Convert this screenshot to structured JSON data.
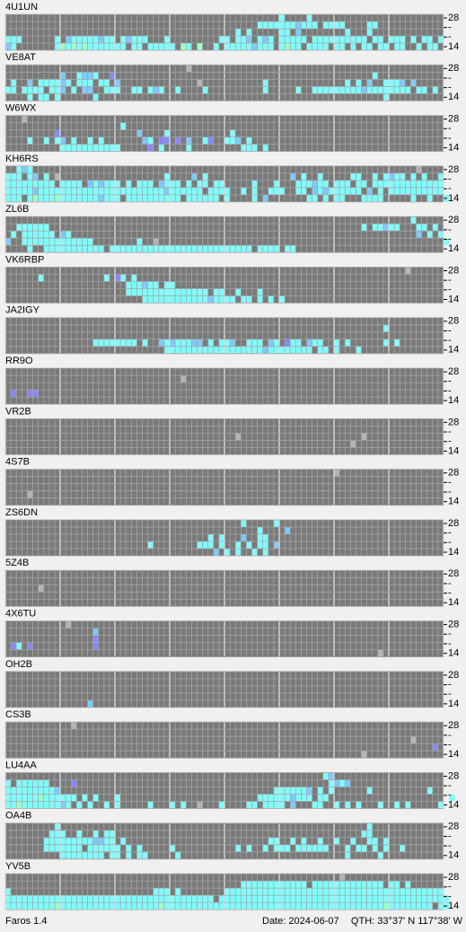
{
  "band_labels": [
    "28",
    "-",
    "-",
    "14"
  ],
  "stations": [
    {
      "name": "4U1UN",
      "rows": [
        "..................................................c....c",
        "..............................................cccccccbccc.cccc....cc",
        "..........................................c.c.....cc.b........c...c.....",
        "ccc......c.bcccccbcc.cbccc...c.........cc.ccb.cbc.ccccc.cccccccccc.cc.ccc.c.cc.c",
        "bc.......cgcgcgccccccc.cc.ccccc.gc.g..c.cccccbccc.cgcc.cccc.cc.c.cc.cc.cc..c.cc."
      ]
    },
    {
      "name": "VE8AT",
      "rows": [
        ".................................n",
        "..........b..cbbc..p...............................................c..........",
        ".c..b.ccccbc.ccc.cc.b..............n...........c..............c.c.b..cccb.b.....",
        "cc.cccc.ccb.c.bb..ccc..cc.cbc..c....c..........c.....c..cccccccccbcccccccc.cc.c..",
        "....c.cc.c......c....................................................c.........."
      ]
    },
    {
      "name": "W6WX",
      "rows": [
        "...n",
        ".....................c",
        ".........p..............b....c...........c",
        "....c..c.cb.c..c.c.......bc.pp.p.b..cp..ccb.c",
        "..........ccccccccccc.....p.c....c.........ccc.c"
      ]
    },
    {
      "name": "KH6RS",
      "rows": [
        "..cbc......................................................................n",
        "ccc.cb.c.n...................c....b.c...............b.c..c.....cc..c.cbcc.c.c..c",
        "ccccccccc.cccc.bcbccc.c.ccc.bccc.c.cc.cc.....c...c...cccbcc.ccc.cc.ccccccccccccc",
        "cccccbcccccccccccccccccccccccbcccccc.cccc..c.c..ccc..cc.bcbcccccc.b.c.cccccccccc.",
        "ccc.cgcccgcccccccbccc.cccccccccc.cccccc.c....c.b.......cc.c.cc...cccc.....c..c..c"
      ]
    },
    {
      "name": "ZL6B",
      "rows": [
        "..........................................................................c",
        "..cccccc.........................................................c.ccbcc...cc.c",
        ".c.cccccc.bc...............................................................b.c.c",
        "b..ccccccccccccc........c..n....................................................c",
        "....c..ccccccccccc.cccccccccccccccccccccccccc.cccc.cc"
      ]
    },
    {
      "name": "VK6RBP",
      "rows": [
        ".........................................................................n",
        "......c...........c.pc.c",
        "......................cccbcc.cc",
        "......................ccccccccccccccc.cc..c...c",
        ".........................ccccccccccccbcccc.cc.c.c.c"
      ]
    },
    {
      "name": "JA2IGY",
      "rows": [
        "",
        ".....................................................................c",
        "",
        "................cccccccc.c..bcbcccbb.c.ccb..ccc.bc.pcc.bcc..c.c......c.c",
        ".............................ccccccccccccccccccbcccccccc.cc.c...c"
      ]
    },
    {
      "name": "RR9O",
      "rows": [
        "",
        "................................n",
        "",
        ".p..pp",
        ""
      ]
    },
    {
      "name": "VR2B",
      "rows": [
        "",
        "",
        "..........................................n......................n",
        "...............................................................n",
        ""
      ]
    },
    {
      "name": "4S7B",
      "rows": [
        "............................................................n",
        "",
        "",
        "....n",
        ""
      ]
    },
    {
      "name": "ZS6DN",
      "rows": [
        "...........................................c.....c",
        "..............................................c....b",
        ".....................................c.c...b..cc",
        "..........................c........ccc.c..c.c.cc.b",
        "......................................b.c.c..c.c"
      ]
    },
    {
      "name": "5Z4B",
      "rows": [
        "",
        "",
        "......n",
        "",
        ""
      ]
    },
    {
      "name": "4X6TU",
      "rows": [
        "...........n",
        "................b",
        "................p",
        ".pc.p...........p",
        "....................................................................n"
      ]
    },
    {
      "name": "OH2B",
      "rows": [
        "",
        "",
        "",
        "",
        "...............b"
      ]
    },
    {
      "name": "CS3B",
      "rows": [
        "............n",
        "",
        "..........................................................................n",
        "..............................................................................p",
        ".................................................................n"
      ]
    },
    {
      "name": "LU4AA",
      "rows": [
        "..........................................................cb",
        "c.cccccc....p..............................................cbcb",
        "cccccccccb.......................................ccccccb.c.c......c..........c",
        "ccccccgcccccc.c.c...c.........................ccccccbccc.cc......................c",
        "ccgcccccccbc.c.c..c.c.....c...c.c..n...c....cc.cccc.b...cc..c.c.c...c..c.c.....c"
      ]
    },
    {
      "name": "OA4B",
      "rows": [
        ".........c........................................................c",
        "........ccc..c..c.cc.............................................cc",
        ".......cccccccccbbcc.c..........................cc..c.c..c..c..c..cc.c",
        ".......ccccccc.cccccc.c.c.....c...........c.c..c.ccc.cccccc...c.cc.c.c..c",
        "..........cccccccc.cc.c.cc.....c..............................c.....c"
      ]
    },
    {
      "name": "YV5B",
      "rows": [
        ".............................................................n",
        "...........................................cccccccccccc.ccccccccccccc.cc.c",
        "c..........................ccc.c........cccccccccccccccccccccccccccccccccccccccc",
        "cccccccccccccccccccccccccccccccccccccc.cccccccccccccccccccccccccccccccccccccccccc",
        "cccccccccgccccccccccccccccccgccccccccccccccccccccccccccccccccccccccccgcccccccc.cc"
      ]
    }
  ],
  "footer": {
    "version": "Faros 1.4",
    "date": "Date: 2024-06-07",
    "qth": "QTH: 33°37' N  117°38' W"
  }
}
